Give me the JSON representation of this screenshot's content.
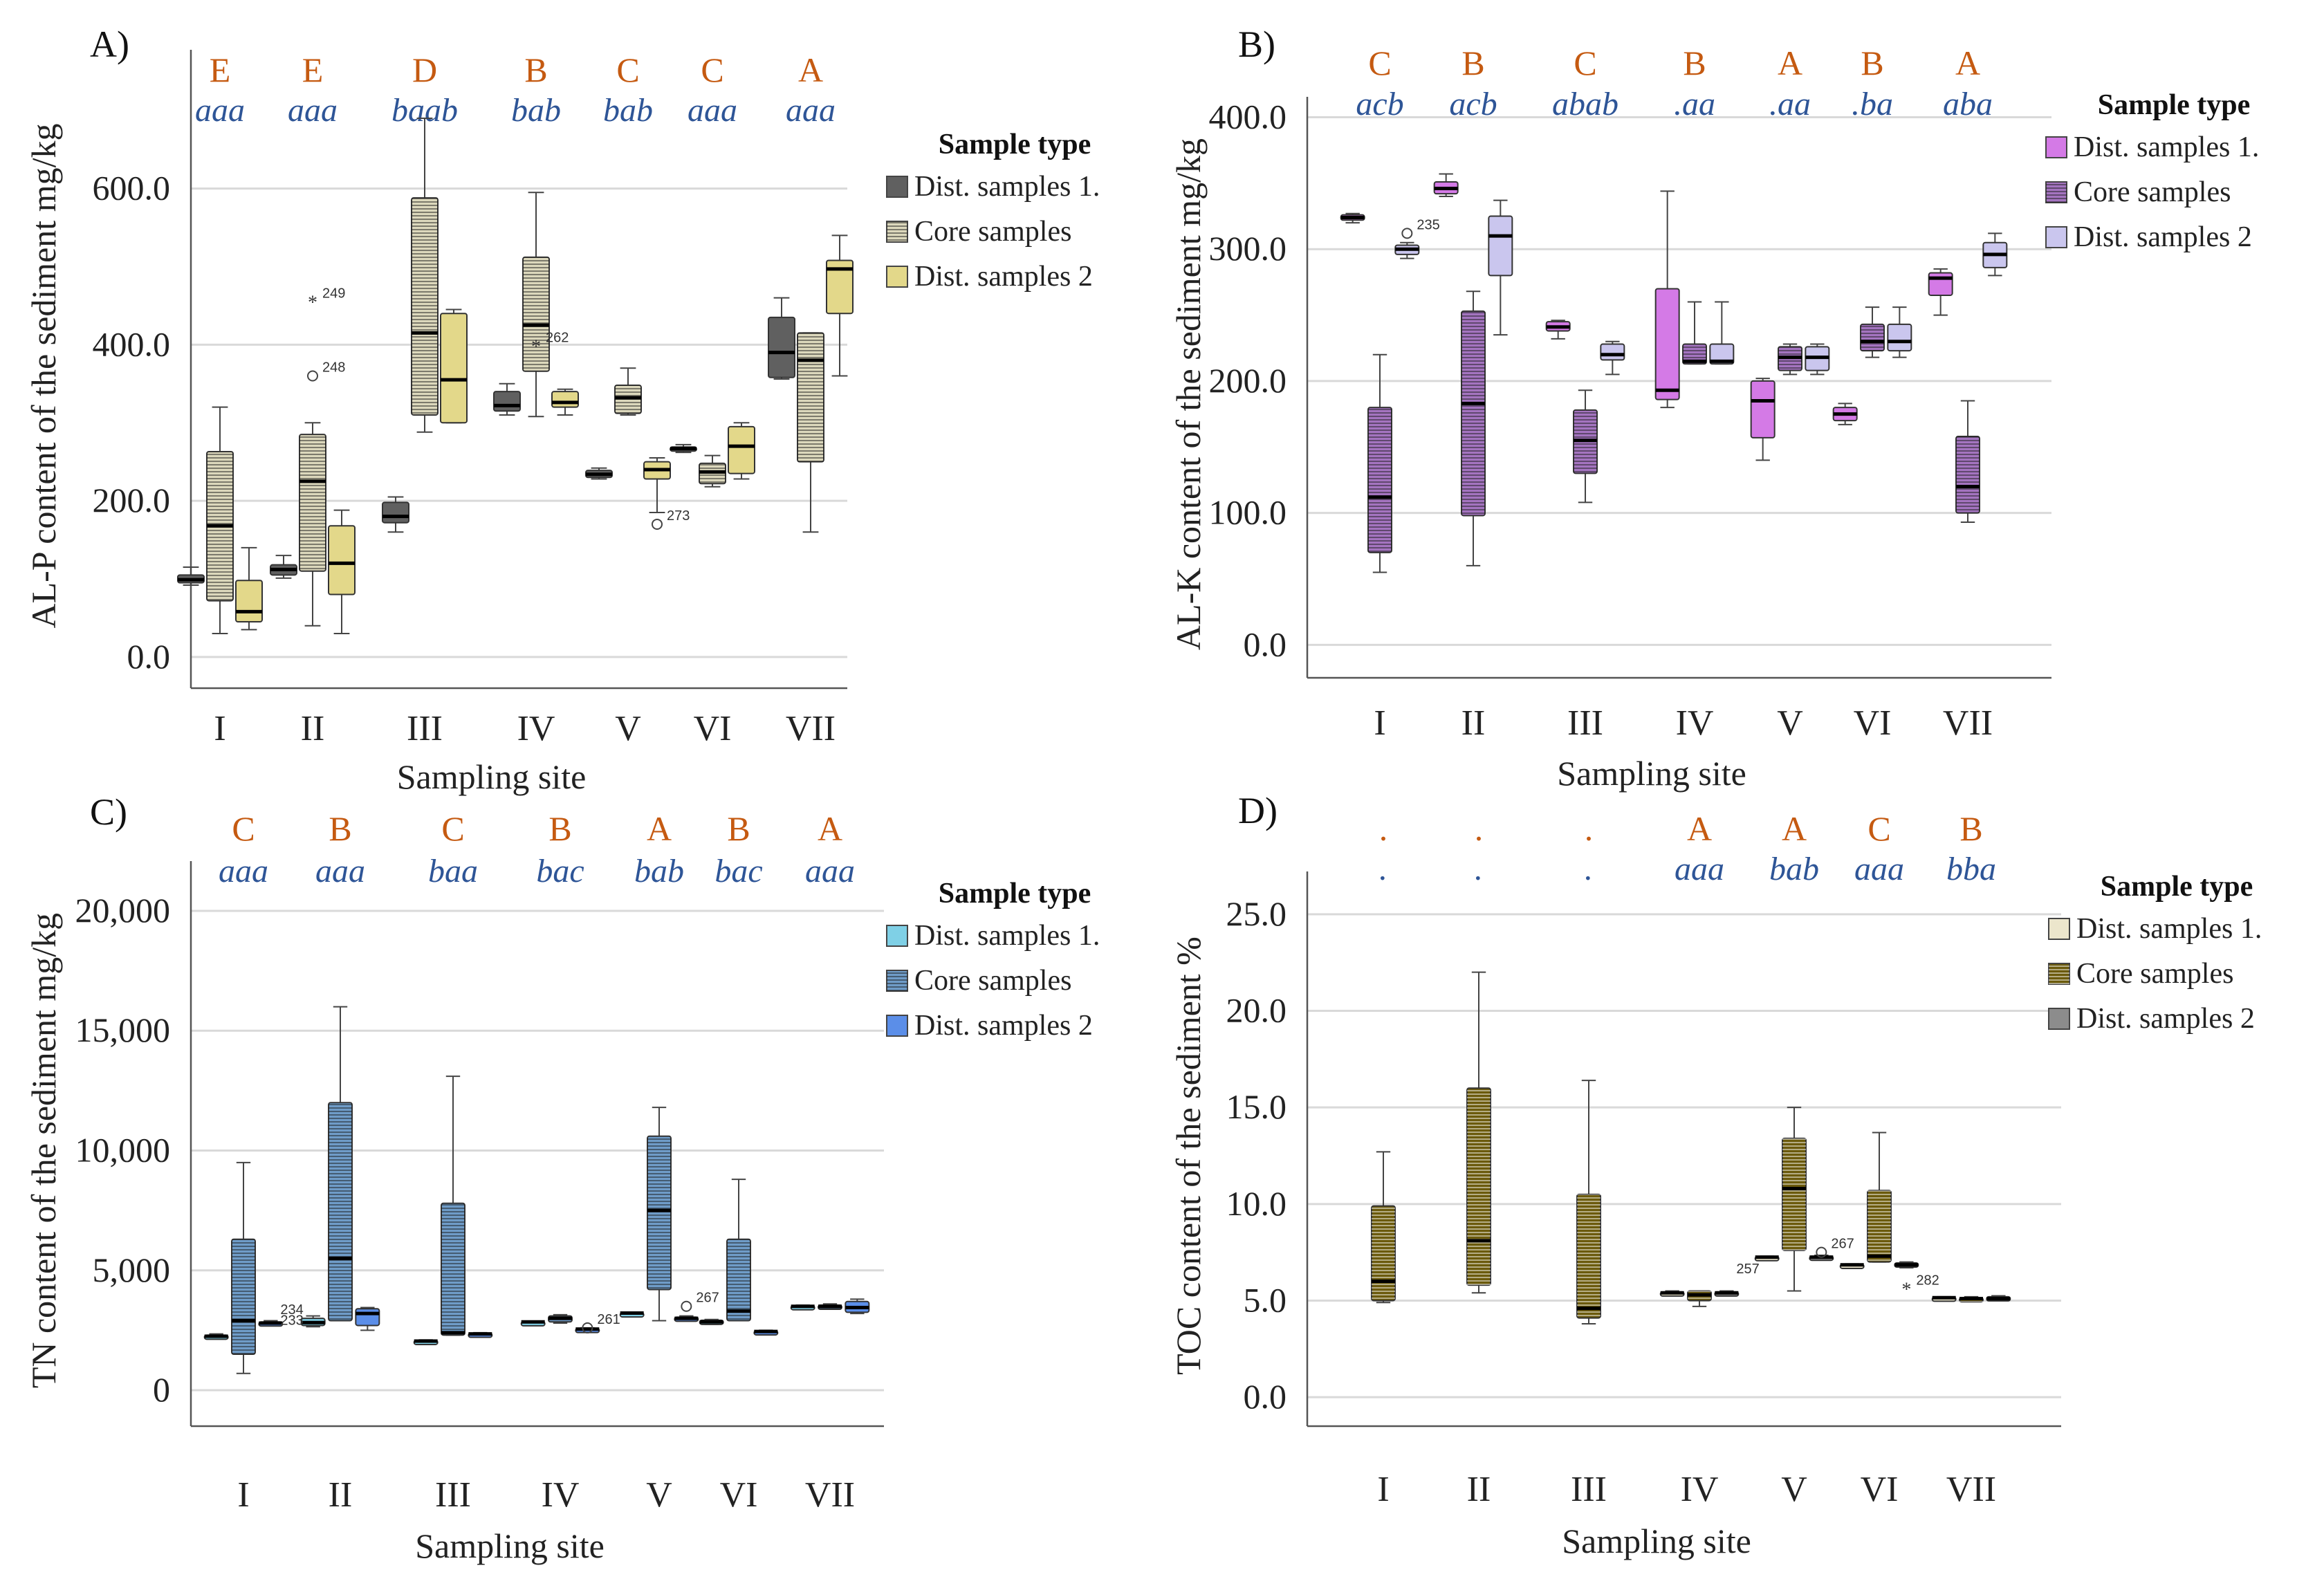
{
  "figure": {
    "xlabel": "Sampling site",
    "categories": [
      "I",
      "II",
      "III",
      "IV",
      "V",
      "VI",
      "VII"
    ],
    "series_names": [
      "Dist. samples 1.",
      "Core samples",
      "Dist. samples 2"
    ]
  },
  "chart_data": [
    {
      "panel": "A)",
      "type": "box",
      "ylabel": "AL-P content of the sediment  mg/kg",
      "xlabel": "Sampling site",
      "ylim": [
        -40,
        760
      ],
      "yticks": [
        0,
        200,
        400,
        600
      ],
      "ytick_labels": [
        "0.0",
        "200.0",
        "400.0",
        "600.0"
      ],
      "categories": [
        "I",
        "II",
        "III",
        "IV",
        "V",
        "VI",
        "VII"
      ],
      "group_letters": [
        "E",
        "E",
        "D",
        "B",
        "C",
        "C",
        "A"
      ],
      "type_letters": [
        "aaa",
        "aaa",
        "baab",
        "bab",
        "bab",
        "aaa",
        "aaa"
      ],
      "legend_title": "Sample type",
      "colors": [
        "#606060",
        "#dcd8bc",
        "#e3d88a"
      ],
      "hatched": [
        false,
        true,
        false
      ],
      "series": [
        {
          "name": "Dist. samples 1.",
          "boxes": [
            {
              "min": 92,
              "q1": 95,
              "median": 99,
              "q3": 105,
              "max": 115
            },
            {
              "min": 101,
              "q1": 105,
              "median": 112,
              "q3": 118,
              "max": 130
            },
            {
              "min": 160,
              "q1": 172,
              "median": 180,
              "q3": 198,
              "max": 205
            },
            {
              "min": 310,
              "q1": 315,
              "median": 322,
              "q3": 340,
              "max": 350
            },
            {
              "min": 228,
              "q1": 230,
              "median": 234,
              "q3": 239,
              "max": 242
            },
            {
              "min": 262,
              "q1": 265,
              "median": 267,
              "q3": 269,
              "max": 272
            },
            {
              "min": 356,
              "q1": 358,
              "median": 390,
              "q3": 435,
              "max": 460
            }
          ]
        },
        {
          "name": "Core samples",
          "boxes": [
            {
              "min": 30,
              "q1": 72,
              "median": 168,
              "q3": 263,
              "max": 320
            },
            {
              "min": 40,
              "q1": 110,
              "median": 225,
              "q3": 285,
              "max": 300
            },
            {
              "min": 288,
              "q1": 310,
              "median": 415,
              "q3": 588,
              "max": 690
            },
            {
              "min": 308,
              "q1": 366,
              "median": 425,
              "q3": 512,
              "max": 595
            },
            {
              "min": 310,
              "q1": 312,
              "median": 332,
              "q3": 348,
              "max": 370
            },
            {
              "min": 218,
              "q1": 222,
              "median": 237,
              "q3": 248,
              "max": 258
            },
            {
              "min": 160,
              "q1": 250,
              "median": 380,
              "q3": 415,
              "max": 415
            }
          ]
        },
        {
          "name": "Dist. samples 2",
          "boxes": [
            {
              "min": 35,
              "q1": 45,
              "median": 58,
              "q3": 98,
              "max": 140
            },
            {
              "min": 30,
              "q1": 80,
              "median": 120,
              "q3": 168,
              "max": 188
            },
            {
              "min": 300,
              "q1": 300,
              "median": 355,
              "q3": 440,
              "max": 445
            },
            {
              "min": 310,
              "q1": 320,
              "median": 326,
              "q3": 340,
              "max": 343
            },
            {
              "min": 185,
              "q1": 228,
              "median": 240,
              "q3": 250,
              "max": 255
            },
            {
              "min": 228,
              "q1": 235,
              "median": 270,
              "q3": 295,
              "max": 300
            },
            {
              "min": 360,
              "q1": 440,
              "median": 497,
              "q3": 508,
              "max": 540
            }
          ]
        }
      ],
      "outliers": [
        {
          "category": "II",
          "series": 1,
          "value": 455,
          "marker": "*",
          "label": "249"
        },
        {
          "category": "II",
          "series": 1,
          "value": 360,
          "marker": "o",
          "label": "248"
        },
        {
          "category": "IV",
          "series": 1,
          "value": 398,
          "marker": "*",
          "label": "262"
        },
        {
          "category": "V",
          "series": 2,
          "value": 170,
          "marker": "o",
          "label": "273"
        }
      ]
    },
    {
      "panel": "B)",
      "type": "box",
      "ylabel": "AL-K content of the sediment  mg/kg",
      "xlabel": "Sampling site",
      "ylim": [
        -25,
        405
      ],
      "yticks": [
        0,
        100,
        200,
        300,
        400
      ],
      "ytick_labels": [
        "0.0",
        "100.0",
        "200.0",
        "300.0",
        "400.0"
      ],
      "categories": [
        "I",
        "II",
        "III",
        "IV",
        "V",
        "VI",
        "VII"
      ],
      "group_letters": [
        "C",
        "B",
        "C",
        "B",
        "A",
        "B",
        "A"
      ],
      "type_letters": [
        "acb",
        "acb",
        "abab",
        ".aa",
        ".aa",
        ".ba",
        "aba"
      ],
      "legend_title": "Sample type",
      "colors": [
        "#d47ae6",
        "#a474c0",
        "#cac6ee"
      ],
      "hatched": [
        false,
        true,
        false
      ],
      "series": [
        {
          "name": "Dist. samples 1.",
          "boxes": [
            {
              "min": 320,
              "q1": 322,
              "median": 324,
              "q3": 326,
              "max": 327
            },
            {
              "min": 340,
              "q1": 342,
              "median": 346,
              "q3": 351,
              "max": 357
            },
            {
              "min": 232,
              "q1": 238,
              "median": 241,
              "q3": 245,
              "max": 246
            },
            {
              "min": 180,
              "q1": 186,
              "median": 193,
              "q3": 270,
              "max": 344
            },
            {
              "min": 140,
              "q1": 157,
              "median": 185,
              "q3": 200,
              "max": 202
            },
            {
              "min": 167,
              "q1": 170,
              "median": 175,
              "q3": 180,
              "max": 183
            },
            {
              "min": 250,
              "q1": 265,
              "median": 278,
              "q3": 282,
              "max": 285
            }
          ]
        },
        {
          "name": "Core samples",
          "boxes": [
            {
              "min": 55,
              "q1": 70,
              "median": 112,
              "q3": 180,
              "max": 220
            },
            {
              "min": 60,
              "q1": 98,
              "median": 183,
              "q3": 253,
              "max": 268
            },
            {
              "min": 108,
              "q1": 130,
              "median": 155,
              "q3": 178,
              "max": 193
            },
            {
              "min": 213,
              "q1": 213,
              "median": 215,
              "q3": 228,
              "max": 260
            },
            {
              "min": 205,
              "q1": 208,
              "median": 218,
              "q3": 226,
              "max": 228
            },
            {
              "min": 218,
              "q1": 223,
              "median": 230,
              "q3": 243,
              "max": 256
            },
            {
              "min": 93,
              "q1": 100,
              "median": 120,
              "q3": 158,
              "max": 185
            }
          ]
        },
        {
          "name": "Dist. samples 2",
          "boxes": [
            {
              "min": 293,
              "q1": 296,
              "median": 300,
              "q3": 303,
              "max": 305
            },
            {
              "min": 235,
              "q1": 280,
              "median": 310,
              "q3": 325,
              "max": 337
            },
            {
              "min": 205,
              "q1": 216,
              "median": 220,
              "q3": 228,
              "max": 230
            },
            {
              "min": 213,
              "q1": 213,
              "median": 215,
              "q3": 228,
              "max": 260
            },
            {
              "min": 205,
              "q1": 208,
              "median": 218,
              "q3": 226,
              "max": 228
            },
            {
              "min": 218,
              "q1": 223,
              "median": 230,
              "q3": 243,
              "max": 256
            },
            {
              "min": 280,
              "q1": 286,
              "median": 296,
              "q3": 305,
              "max": 312
            }
          ]
        }
      ],
      "outliers": [
        {
          "category": "I",
          "series": 2,
          "value": 312,
          "marker": "o",
          "label": "235"
        }
      ]
    },
    {
      "panel": "C)",
      "type": "box",
      "ylabel": "TN content of the sediment  mg/kg",
      "xlabel": "Sampling site",
      "ylim": [
        -1500,
        21500
      ],
      "yticks": [
        0,
        5000,
        10000,
        15000,
        20000
      ],
      "ytick_labels": [
        "0",
        "5,000",
        "10,000",
        "15,000",
        "20,000"
      ],
      "categories": [
        "I",
        "II",
        "III",
        "IV",
        "V",
        "VI",
        "VII"
      ],
      "group_letters": [
        "C",
        "B",
        "C",
        "B",
        "A",
        "B",
        "A"
      ],
      "type_letters": [
        "aaa",
        "aaa",
        "baa",
        "bac",
        "bab",
        "bac",
        "aaa"
      ],
      "legend_title": "Sample type",
      "colors": [
        "#7fd0e6",
        "#6f9cc8",
        "#5b8ee8"
      ],
      "hatched": [
        false,
        true,
        false
      ],
      "series": [
        {
          "name": "Dist. samples 1.",
          "boxes": [
            {
              "min": 2150,
              "q1": 2200,
              "median": 2250,
              "q3": 2300,
              "max": 2350
            },
            {
              "min": 2650,
              "q1": 2700,
              "median": 2820,
              "q3": 3000,
              "max": 3100
            },
            {
              "min": 2000,
              "q1": 2020,
              "median": 2050,
              "q3": 2080,
              "max": 2100
            },
            {
              "min": 2830,
              "q1": 2840,
              "median": 2850,
              "q3": 2860,
              "max": 2870
            },
            {
              "min": 3200,
              "q1": 3210,
              "median": 3220,
              "q3": 3230,
              "max": 3240
            },
            {
              "min": 2750,
              "q1": 2800,
              "median": 2850,
              "q3": 2920,
              "max": 2950
            },
            {
              "min": 3450,
              "q1": 3480,
              "median": 3500,
              "q3": 3530,
              "max": 3550
            }
          ]
        },
        {
          "name": "Core samples",
          "boxes": [
            {
              "min": 700,
              "q1": 1500,
              "median": 2900,
              "q3": 6300,
              "max": 9500
            },
            {
              "min": 2900,
              "q1": 2900,
              "median": 5500,
              "q3": 12000,
              "max": 16000
            },
            {
              "min": 2300,
              "q1": 2300,
              "median": 2400,
              "q3": 7800,
              "max": 13100
            },
            {
              "min": 2800,
              "q1": 2850,
              "median": 3000,
              "q3": 3100,
              "max": 3150
            },
            {
              "min": 2900,
              "q1": 4200,
              "median": 7500,
              "q3": 10600,
              "max": 11800
            },
            {
              "min": 2900,
              "q1": 2900,
              "median": 3300,
              "q3": 6300,
              "max": 8800
            },
            {
              "min": 3400,
              "q1": 3450,
              "median": 3500,
              "q3": 3550,
              "max": 3600
            }
          ]
        },
        {
          "name": "Dist. samples 2",
          "boxes": [
            {
              "min": 2750,
              "q1": 2780,
              "median": 2800,
              "q3": 2850,
              "max": 2900
            },
            {
              "min": 2500,
              "q1": 2700,
              "median": 3200,
              "q3": 3400,
              "max": 3450
            },
            {
              "min": 2300,
              "q1": 2320,
              "median": 2350,
              "q3": 2380,
              "max": 2400
            },
            {
              "min": 2450,
              "q1": 2500,
              "median": 2550,
              "q3": 2580,
              "max": 2600
            },
            {
              "min": 2900,
              "q1": 2950,
              "median": 3000,
              "q3": 3050,
              "max": 3100
            },
            {
              "min": 2400,
              "q1": 2430,
              "median": 2450,
              "q3": 2480,
              "max": 2500
            },
            {
              "min": 3200,
              "q1": 3250,
              "median": 3450,
              "q3": 3700,
              "max": 3800
            }
          ]
        }
      ],
      "outliers": [
        {
          "category": "I",
          "series": 2,
          "value": 3000,
          "marker": "",
          "label": "234"
        },
        {
          "category": "I",
          "series": 2,
          "value": 2550,
          "marker": "",
          "label": "233"
        },
        {
          "category": "IV",
          "series": 2,
          "value": 2600,
          "marker": "o",
          "label": "261"
        },
        {
          "category": "V",
          "series": 2,
          "value": 3500,
          "marker": "o",
          "label": "267"
        }
      ]
    },
    {
      "panel": "D)",
      "type": "box",
      "ylabel": "TOC content of the sediment  %",
      "xlabel": "Sampling site",
      "ylim": [
        -1.5,
        26.5
      ],
      "yticks": [
        0,
        5,
        10,
        15,
        20,
        25
      ],
      "ytick_labels": [
        "0.0",
        "5.0",
        "10.0",
        "15.0",
        "20.0",
        "25.0"
      ],
      "categories": [
        "I",
        "II",
        "III",
        "IV",
        "V",
        "VI",
        "VII"
      ],
      "group_letters": [
        ".",
        ".",
        ".",
        "A",
        "A",
        "C",
        "B"
      ],
      "type_letters": [
        ".",
        ".",
        ".",
        "aaa",
        "bab",
        "aaa",
        "bba"
      ],
      "legend_title": "Sample type",
      "colors": [
        "#ece6cc",
        "#6b5a0c",
        "#8c8c8c"
      ],
      "hatched": [
        false,
        true,
        false
      ],
      "series": [
        {
          "name": "Dist. samples 1.",
          "boxes": [
            null,
            null,
            null,
            {
              "min": 5.3,
              "q1": 5.35,
              "median": 5.4,
              "q3": 5.45,
              "max": 5.5
            },
            {
              "min": 7.2,
              "q1": 7.22,
              "median": 7.25,
              "q3": 7.28,
              "max": 7.3
            },
            {
              "min": 6.8,
              "q1": 6.82,
              "median": 6.85,
              "q3": 6.88,
              "max": 6.9
            },
            {
              "min": 5.1,
              "q1": 5.12,
              "median": 5.15,
              "q3": 5.18,
              "max": 5.2
            }
          ]
        },
        {
          "name": "Core samples",
          "boxes": [
            {
              "min": 4.9,
              "q1": 5.0,
              "median": 6.0,
              "q3": 9.9,
              "max": 12.7
            },
            {
              "min": 5.4,
              "q1": 5.8,
              "median": 8.1,
              "q3": 16.0,
              "max": 22.0
            },
            {
              "min": 3.8,
              "q1": 4.1,
              "median": 4.6,
              "q3": 10.5,
              "max": 16.4
            },
            {
              "min": 4.7,
              "q1": 5.0,
              "median": 5.3,
              "q3": 5.5,
              "max": 5.5
            },
            {
              "min": 5.5,
              "q1": 7.6,
              "median": 10.8,
              "q3": 13.4,
              "max": 15.0
            },
            {
              "min": 7.0,
              "q1": 7.0,
              "median": 7.3,
              "q3": 10.7,
              "max": 13.7
            },
            {
              "min": 5.0,
              "q1": 5.05,
              "median": 5.1,
              "q3": 5.15,
              "max": 5.2
            }
          ]
        },
        {
          "name": "Dist. samples 2",
          "boxes": [
            null,
            null,
            null,
            {
              "min": 5.3,
              "q1": 5.35,
              "median": 5.4,
              "q3": 5.45,
              "max": 5.5
            },
            {
              "min": 7.2,
              "q1": 7.22,
              "median": 7.25,
              "q3": 7.3,
              "max": 7.35
            },
            {
              "min": 6.7,
              "q1": 6.75,
              "median": 6.85,
              "q3": 6.95,
              "max": 7.0
            },
            {
              "min": 5.0,
              "q1": 5.05,
              "median": 5.1,
              "q3": 5.2,
              "max": 5.25
            }
          ]
        }
      ],
      "outliers": [
        {
          "category": "IV",
          "series": 2,
          "value": 6.2,
          "marker": "",
          "label": "257"
        },
        {
          "category": "V",
          "series": 2,
          "value": 7.5,
          "marker": "o",
          "label": "267"
        },
        {
          "category": "VI",
          "series": 2,
          "value": 5.6,
          "marker": "*",
          "label": "282"
        }
      ]
    }
  ]
}
